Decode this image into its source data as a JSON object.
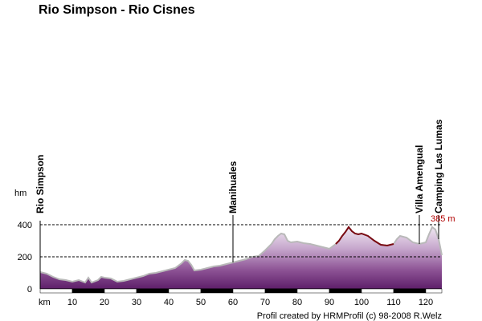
{
  "chart_data": {
    "type": "area",
    "title": "Rio Simpson - Rio Cisnes",
    "xlabel": "km",
    "ylabel": "hm",
    "xlim": [
      0,
      125
    ],
    "ylim": [
      0,
      400
    ],
    "x_ticks": [
      10,
      20,
      30,
      40,
      50,
      60,
      70,
      80,
      90,
      100,
      110,
      120
    ],
    "y_ticks": [
      0,
      200,
      400
    ],
    "dashed_gridlines": [
      200,
      400
    ],
    "max_label": "385 m",
    "max_point": {
      "x": 122,
      "y": 385
    },
    "credit": "Profil created by HRMProfil (c) 98-2008 R.Welz",
    "places": [
      {
        "name": "Rio Simpson",
        "km": 0
      },
      {
        "name": "Manihuales",
        "km": 60
      },
      {
        "name": "Villa Amengual",
        "km": 118
      },
      {
        "name": "Camping Las Lumas",
        "km": 124
      }
    ],
    "series": [
      {
        "x": [
          0,
          2,
          4,
          6,
          8,
          10,
          12,
          14,
          15,
          16,
          18,
          19,
          20,
          22,
          24,
          26,
          28,
          30,
          32,
          34,
          36,
          38,
          40,
          42,
          44,
          45,
          46,
          47,
          48,
          50,
          52,
          54,
          56,
          58,
          60,
          62,
          64,
          66,
          68,
          70,
          72,
          73,
          74,
          75,
          76,
          77,
          78,
          80,
          82,
          84,
          86,
          88,
          90,
          92,
          93,
          94,
          95,
          96,
          97,
          98,
          99,
          100,
          102,
          104,
          106,
          108,
          110,
          111,
          112,
          114,
          116,
          118,
          120,
          121,
          122,
          123,
          124,
          125
        ],
        "y": [
          105,
          95,
          75,
          60,
          55,
          45,
          55,
          40,
          70,
          40,
          55,
          75,
          70,
          65,
          45,
          50,
          60,
          70,
          80,
          95,
          100,
          110,
          120,
          130,
          160,
          180,
          175,
          150,
          115,
          120,
          130,
          140,
          145,
          155,
          165,
          175,
          185,
          200,
          205,
          240,
          280,
          310,
          330,
          345,
          340,
          300,
          290,
          295,
          285,
          280,
          270,
          260,
          250,
          280,
          300,
          330,
          355,
          385,
          360,
          345,
          340,
          345,
          330,
          300,
          275,
          270,
          280,
          310,
          330,
          320,
          290,
          280,
          290,
          340,
          385,
          370,
          310,
          210
        ]
      }
    ],
    "highlighted_segment": {
      "from_km": 91,
      "to_km": 110
    }
  }
}
